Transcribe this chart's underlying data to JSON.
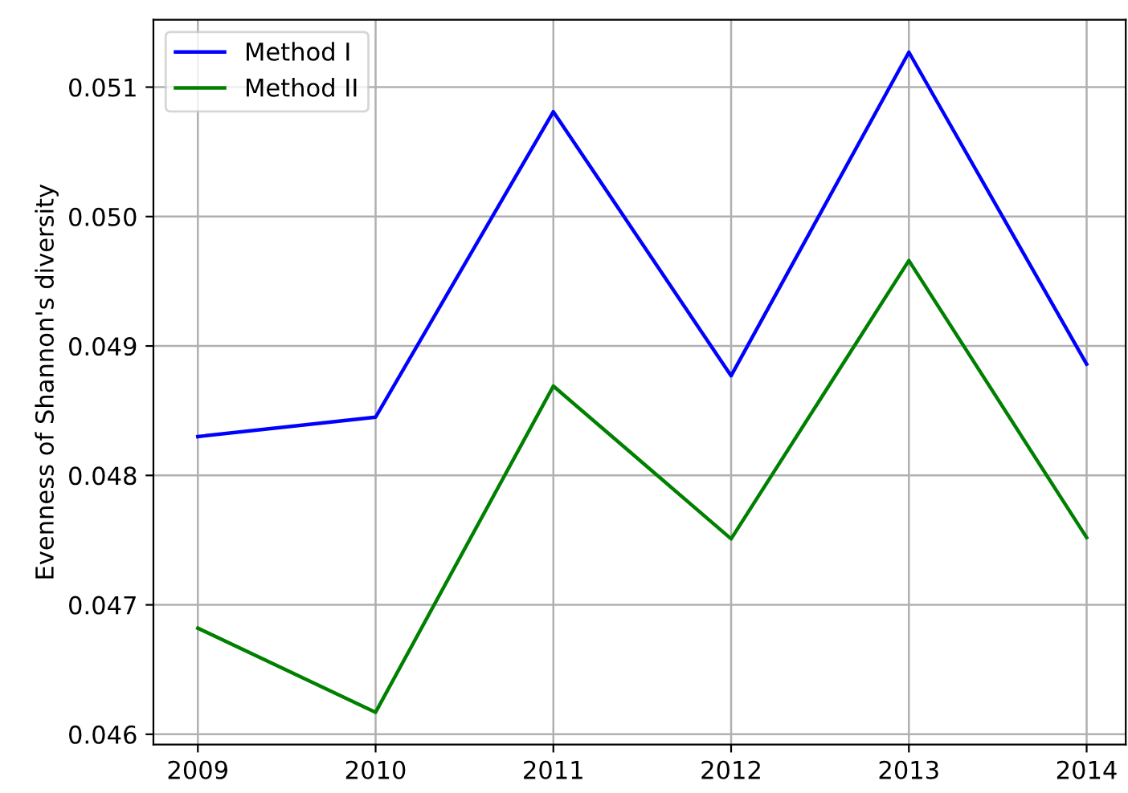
{
  "chart_data": {
    "type": "line",
    "ylabel": "Evenness of Shannon's diversity",
    "x": [
      2009,
      2010,
      2011,
      2012,
      2013,
      2014
    ],
    "series": [
      {
        "name": "Method I",
        "color": "#0000ff",
        "values": [
          0.0483,
          0.04845,
          0.05081,
          0.04877,
          0.05127,
          0.04886
        ]
      },
      {
        "name": "Method II",
        "color": "#008000",
        "values": [
          0.04682,
          0.04617,
          0.04869,
          0.04751,
          0.04966,
          0.04752
        ]
      }
    ],
    "xlim": [
      2008.75,
      2014.22
    ],
    "xticks": [
      2009,
      2010,
      2011,
      2012,
      2013,
      2014
    ],
    "ylim": [
      0.04592,
      0.05152
    ],
    "yticks": [
      0.046,
      0.047,
      0.048,
      0.049,
      {
        "value": 0.05,
        "label": "0.050"
      },
      0.051
    ],
    "grid": true,
    "legend": "top left"
  }
}
